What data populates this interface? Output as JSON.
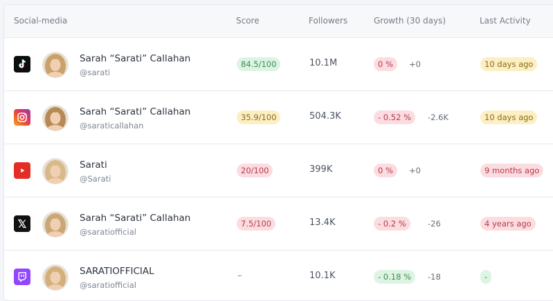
{
  "header": {
    "social_media": "Social-media",
    "score": "Score",
    "followers": "Followers",
    "growth": "Growth (30 days)",
    "last_activity": "Last Activity"
  },
  "colors": {
    "tiktok": "#0d0d0d",
    "instagram": "#d6336c",
    "youtube": "#e52d27",
    "x": "#111111",
    "twitch": "#9146ff",
    "pill_green": "#ddf4e3",
    "pill_yellow": "#fcefc4",
    "pill_red": "#fbdde1"
  },
  "rows": [
    {
      "platform_icon": "tiktok-icon",
      "name": "Sarah “Sarati” Callahan",
      "handle": "@sarati",
      "score": "84.5/100",
      "score_tone": "green",
      "followers": "10.1M",
      "growth": "0 %",
      "growth_tone": "red",
      "delta": "+0",
      "activity": "10 days ago",
      "activity_tone": "yellow"
    },
    {
      "platform_icon": "instagram-icon",
      "name": "Sarah “Sarati” Callahan",
      "handle": "@saraticallahan",
      "score": "35.9/100",
      "score_tone": "yellow",
      "followers": "504.3K",
      "growth": "- 0.52 %",
      "growth_tone": "red",
      "delta": "-2.6K",
      "activity": "10 days ago",
      "activity_tone": "yellow"
    },
    {
      "platform_icon": "youtube-icon",
      "name": "Sarati",
      "handle": "@Sarati",
      "score": "20/100",
      "score_tone": "red",
      "followers": "399K",
      "growth": "0 %",
      "growth_tone": "red",
      "delta": "+0",
      "activity": "9 months ago",
      "activity_tone": "red"
    },
    {
      "platform_icon": "x-icon",
      "name": "Sarah “Sarati” Callahan",
      "handle": "@saratiofficial",
      "score": "7.5/100",
      "score_tone": "red",
      "followers": "13.4K",
      "growth": "- 0.2 %",
      "growth_tone": "red",
      "delta": "-26",
      "activity": "4 years ago",
      "activity_tone": "red"
    },
    {
      "platform_icon": "twitch-icon",
      "name": "SARATIOFFICIAL",
      "handle": "@saratiofficial",
      "score": "–",
      "score_tone": "none",
      "followers": "10.1K",
      "growth": "- 0.18 %",
      "growth_tone": "green",
      "delta": "-18",
      "activity": "-",
      "activity_tone": "green"
    }
  ]
}
